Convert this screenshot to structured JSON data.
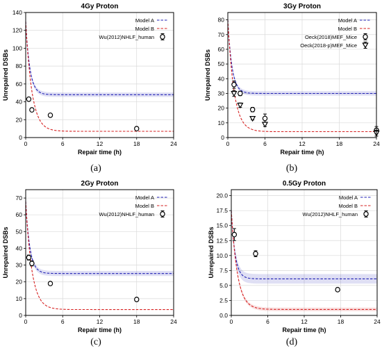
{
  "chart_data": [
    {
      "type": "line",
      "title": "4Gy Proton",
      "xlabel": "Repair time (h)",
      "ylabel": "Unrepaired DSBs",
      "xlim": [
        0,
        24
      ],
      "ylim": [
        0,
        140
      ],
      "xticks": [
        "0",
        "6",
        "12",
        "18",
        "24"
      ],
      "yticks": [
        "0",
        "20",
        "40",
        "60",
        "80",
        "100",
        "120",
        "140"
      ],
      "grid": true,
      "legend": "top-right",
      "caption": "(a)",
      "models": [
        {
          "name": "Model A",
          "color": "#1f1fb4",
          "start": 130,
          "plateau": 48,
          "rate": 1.5,
          "band": 2.5
        },
        {
          "name": "Model B",
          "color": "#d62020",
          "start": 130,
          "plateau": 7,
          "rate": 1.0,
          "band": 0
        }
      ],
      "experiments": [
        {
          "name": "Wu(2012)NHLF_human",
          "marker": "circle",
          "points": [
            {
              "x": 0.5,
              "y": 43,
              "err": 1.5
            },
            {
              "x": 1.0,
              "y": 31,
              "err": 1.0
            },
            {
              "x": 4.0,
              "y": 25,
              "err": 1.0
            },
            {
              "x": 18.0,
              "y": 10,
              "err": 1.0
            }
          ]
        }
      ]
    },
    {
      "type": "line",
      "title": "3Gy Proton",
      "xlabel": "Repair time (h)",
      "ylabel": "Unrepaired DSBs",
      "xlim": [
        0,
        24
      ],
      "ylim": [
        0,
        85
      ],
      "xticks": [
        "0",
        "6",
        "12",
        "18",
        "24"
      ],
      "yticks": [
        "0",
        "10",
        "20",
        "30",
        "40",
        "50",
        "60",
        "70",
        "80"
      ],
      "grid": true,
      "legend": "top-right",
      "caption": "(b)",
      "models": [
        {
          "name": "Model A",
          "color": "#1f1fb4",
          "start": 80,
          "plateau": 30,
          "rate": 1.5,
          "band": 1.5
        },
        {
          "name": "Model B",
          "color": "#d62020",
          "start": 80,
          "plateau": 4,
          "rate": 1.0,
          "band": 0
        }
      ],
      "experiments": [
        {
          "name": "Oeck(2018)MEF_Mice",
          "marker": "circle",
          "points": [
            {
              "x": 1.0,
              "y": 36,
              "err": 2.5
            },
            {
              "x": 2.0,
              "y": 30,
              "err": 1.5
            },
            {
              "x": 4.0,
              "y": 19,
              "err": 1.5
            },
            {
              "x": 6.0,
              "y": 13,
              "err": 3.0
            },
            {
              "x": 24.0,
              "y": 5,
              "err": 2.5
            }
          ]
        },
        {
          "name": "Oeck(2018-p)MEF_Mice",
          "marker": "triangle",
          "points": [
            {
              "x": 1.0,
              "y": 30,
              "err": 2.0
            },
            {
              "x": 2.0,
              "y": 22,
              "err": 1.5
            },
            {
              "x": 4.0,
              "y": 13,
              "err": 1.0
            },
            {
              "x": 6.0,
              "y": 9,
              "err": 1.5
            },
            {
              "x": 24.0,
              "y": 3,
              "err": 2.0
            }
          ]
        }
      ]
    },
    {
      "type": "line",
      "title": "2Gy Proton",
      "xlabel": "Repair time (h)",
      "ylabel": "Unrepaired DSBs",
      "xlim": [
        0,
        24
      ],
      "ylim": [
        0,
        75
      ],
      "xticks": [
        "0",
        "6",
        "12",
        "18",
        "24"
      ],
      "yticks": [
        "0",
        "10",
        "20",
        "30",
        "40",
        "50",
        "60",
        "70"
      ],
      "grid": true,
      "legend": "top-right",
      "caption": "(c)",
      "models": [
        {
          "name": "Model A",
          "color": "#1f1fb4",
          "start": 68,
          "plateau": 25,
          "rate": 1.5,
          "band": 1.5
        },
        {
          "name": "Model B",
          "color": "#d62020",
          "start": 68,
          "plateau": 3.5,
          "rate": 1.0,
          "band": 0
        }
      ],
      "experiments": [
        {
          "name": "Wu(2012)NHLF_human",
          "marker": "circle",
          "points": [
            {
              "x": 0.5,
              "y": 34.5,
              "err": 1.5
            },
            {
              "x": 1.0,
              "y": 31,
              "err": 1.5
            },
            {
              "x": 4.0,
              "y": 19,
              "err": 1.0
            },
            {
              "x": 18.0,
              "y": 9.5,
              "err": 1.0
            }
          ]
        }
      ]
    },
    {
      "type": "line",
      "title": "0.5Gy Proton",
      "xlabel": "Repair time (h)",
      "ylabel": "Unrepaired DSBs",
      "xlim": [
        0,
        24
      ],
      "ylim": [
        0,
        21
      ],
      "xticks": [
        "0",
        "6",
        "12",
        "18",
        "24"
      ],
      "yticks": [
        "0.0",
        "2.5",
        "5.0",
        "7.5",
        "10.0",
        "12.5",
        "15.0",
        "17.5",
        "20.0"
      ],
      "grid": true,
      "legend": "top-right",
      "caption": "(d)",
      "models": [
        {
          "name": "Model A",
          "color": "#1f1fb4",
          "start": 17.5,
          "plateau": 6.1,
          "rate": 1.6,
          "band": 0.8
        },
        {
          "name": "Model B",
          "color": "#d62020",
          "start": 17.5,
          "plateau": 1.0,
          "rate": 1.0,
          "band": 0.3
        }
      ],
      "experiments": [
        {
          "name": "Wu(2012)NHLF_human",
          "marker": "circle",
          "points": [
            {
              "x": 0.5,
              "y": 13.5,
              "err": 1.0
            },
            {
              "x": 4.0,
              "y": 10.3,
              "err": 0.5
            },
            {
              "x": 17.5,
              "y": 4.3,
              "err": 0.3
            }
          ]
        }
      ]
    }
  ]
}
